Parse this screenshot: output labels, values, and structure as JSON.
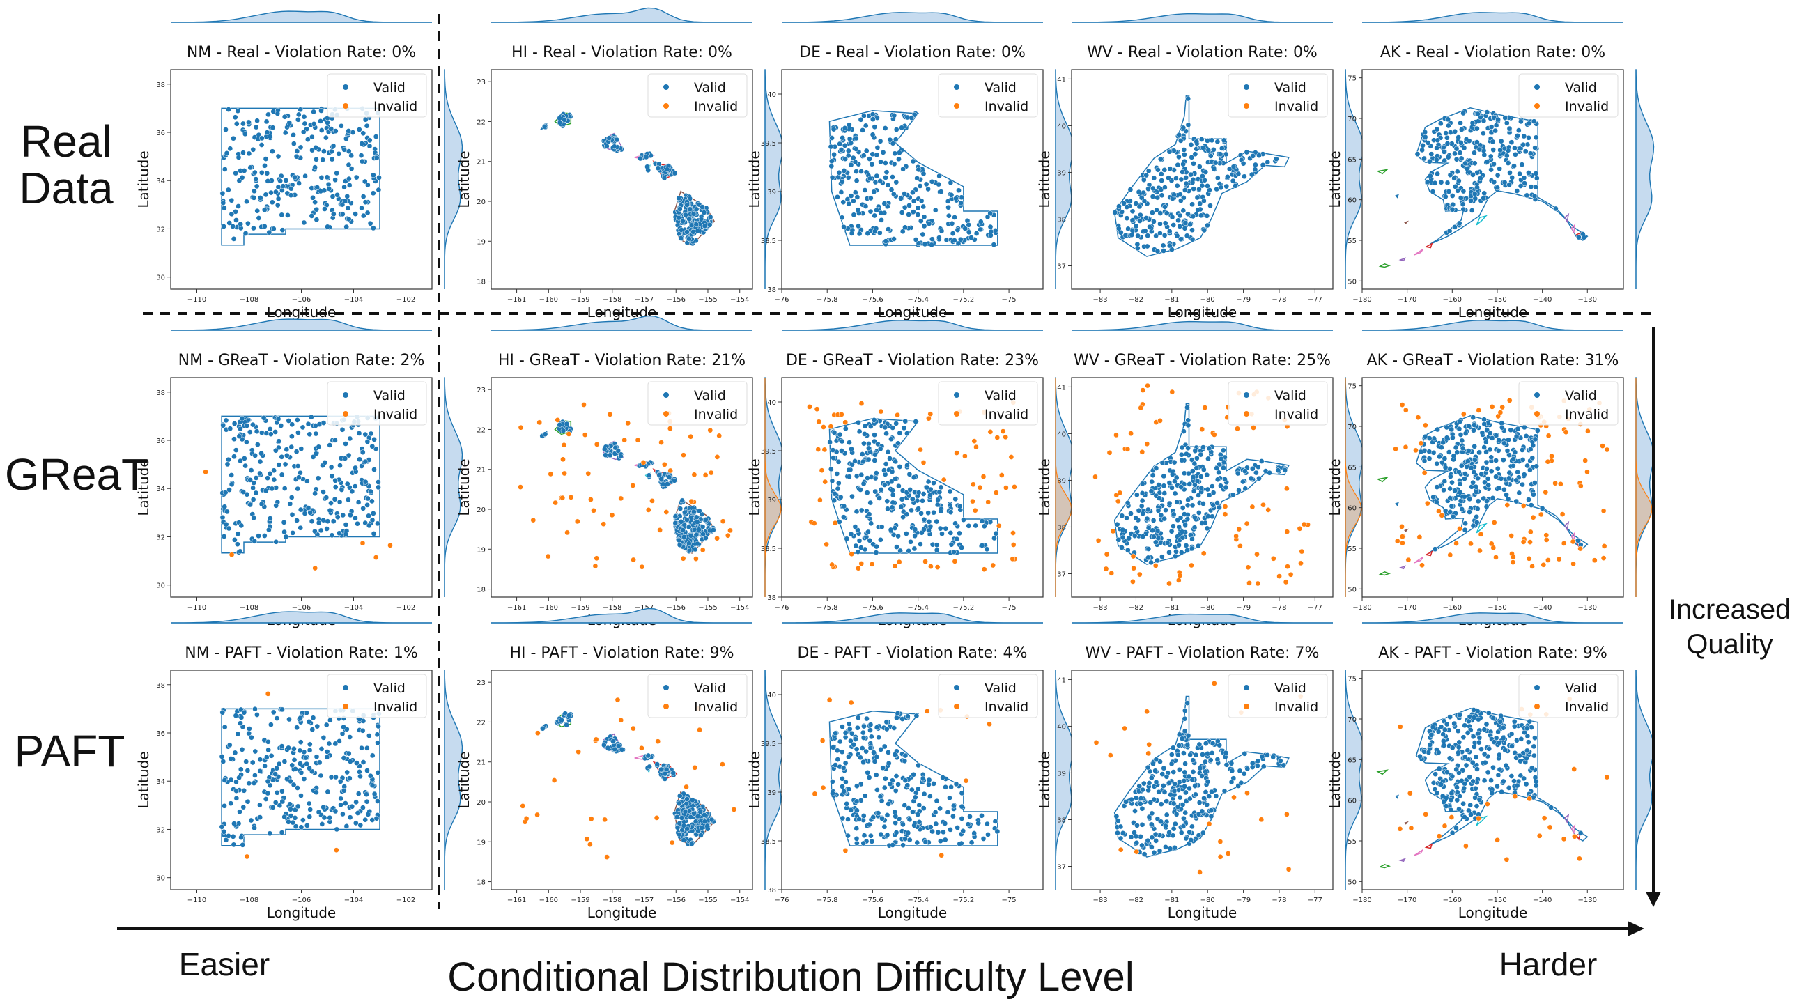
{
  "figure": {
    "row_labels": [
      "Real\nData",
      "GReaT",
      "PAFT"
    ],
    "easier": "Easier",
    "harder": "Harder",
    "difficulty_axis": "Conditional Distribution Difficulty Level",
    "quality_axis": "Increased\nQuality",
    "legend": {
      "valid": "Valid",
      "invalid": "Invalid"
    },
    "xlabel": "Longitude",
    "ylabel": "Latitude",
    "colors": {
      "valid": "#1f77b4",
      "invalid": "#ff7f0e",
      "density": "#c6dbef",
      "border": "#1f77b4"
    }
  },
  "chart_data": [
    {
      "type": "scatter",
      "state": "NM",
      "method": "Real",
      "title": "NM - Real - Violation Rate: 0%",
      "violation_rate": 0,
      "xlim": [
        -111,
        -101
      ],
      "ylim": [
        29.5,
        38.6
      ],
      "xticks": [
        -110,
        -108,
        -106,
        -104,
        -102
      ],
      "yticks": [
        30,
        32,
        34,
        36,
        38
      ]
    },
    {
      "type": "scatter",
      "state": "HI",
      "method": "Real",
      "title": "HI - Real - Violation Rate: 0%",
      "violation_rate": 0,
      "xlim": [
        -161.8,
        -153.6
      ],
      "ylim": [
        17.8,
        23.3
      ],
      "xticks": [
        -161,
        -160,
        -159,
        -158,
        -157,
        -156,
        -155,
        -154
      ],
      "yticks": [
        18,
        19,
        20,
        21,
        22,
        23
      ]
    },
    {
      "type": "scatter",
      "state": "DE",
      "method": "Real",
      "title": "DE - Real - Violation Rate: 0%",
      "violation_rate": 0,
      "xlim": [
        -76.0,
        -74.85
      ],
      "ylim": [
        38.0,
        40.25
      ],
      "xticks": [
        -76.0,
        -75.8,
        -75.6,
        -75.4,
        -75.2,
        -75.0
      ],
      "yticks": [
        38.0,
        38.5,
        39.0,
        39.5,
        40.0
      ]
    },
    {
      "type": "scatter",
      "state": "WV",
      "method": "Real",
      "title": "WV - Real - Violation Rate: 0%",
      "violation_rate": 0,
      "xlim": [
        -83.8,
        -76.5
      ],
      "ylim": [
        36.5,
        41.2
      ],
      "xticks": [
        -83,
        -82,
        -81,
        -80,
        -79,
        -78,
        -77
      ],
      "yticks": [
        37,
        38,
        39,
        40,
        41
      ]
    },
    {
      "type": "scatter",
      "state": "AK",
      "method": "Real",
      "title": "AK - Real - Violation Rate: 0%",
      "violation_rate": 0,
      "xlim": [
        -180,
        -122
      ],
      "ylim": [
        49,
        76
      ],
      "xticks": [
        -180,
        -170,
        -160,
        -150,
        -140,
        -130
      ],
      "yticks": [
        50,
        55,
        60,
        65,
        70,
        75
      ]
    },
    {
      "type": "scatter",
      "state": "NM",
      "method": "GReaT",
      "title": "NM - GReaT - Violation Rate: 2%",
      "violation_rate": 2,
      "xlim": [
        -111,
        -101
      ],
      "ylim": [
        29.5,
        38.6
      ],
      "xticks": [
        -110,
        -108,
        -106,
        -104,
        -102
      ],
      "yticks": [
        30,
        32,
        34,
        36,
        38
      ]
    },
    {
      "type": "scatter",
      "state": "HI",
      "method": "GReaT",
      "title": "HI - GReaT - Violation Rate: 21%",
      "violation_rate": 21,
      "xlim": [
        -161.8,
        -153.6
      ],
      "ylim": [
        17.8,
        23.3
      ],
      "xticks": [
        -161,
        -160,
        -159,
        -158,
        -157,
        -156,
        -155,
        -154
      ],
      "yticks": [
        18,
        19,
        20,
        21,
        22,
        23
      ]
    },
    {
      "type": "scatter",
      "state": "DE",
      "method": "GReaT",
      "title": "DE - GReaT - Violation Rate: 23%",
      "violation_rate": 23,
      "xlim": [
        -76.0,
        -74.85
      ],
      "ylim": [
        38.0,
        40.25
      ],
      "xticks": [
        -76.0,
        -75.8,
        -75.6,
        -75.4,
        -75.2,
        -75.0
      ],
      "yticks": [
        38.0,
        38.5,
        39.0,
        39.5,
        40.0
      ]
    },
    {
      "type": "scatter",
      "state": "WV",
      "method": "GReaT",
      "title": "WV - GReaT - Violation Rate: 25%",
      "violation_rate": 25,
      "xlim": [
        -83.8,
        -76.5
      ],
      "ylim": [
        36.5,
        41.2
      ],
      "xticks": [
        -83,
        -82,
        -81,
        -80,
        -79,
        -78,
        -77
      ],
      "yticks": [
        37,
        38,
        39,
        40,
        41
      ]
    },
    {
      "type": "scatter",
      "state": "AK",
      "method": "GReaT",
      "title": "AK - GReaT - Violation Rate: 31%",
      "violation_rate": 31,
      "xlim": [
        -180,
        -122
      ],
      "ylim": [
        49,
        76
      ],
      "xticks": [
        -180,
        -170,
        -160,
        -150,
        -140,
        -130
      ],
      "yticks": [
        50,
        55,
        60,
        65,
        70,
        75
      ]
    },
    {
      "type": "scatter",
      "state": "NM",
      "method": "PAFT",
      "title": "NM - PAFT - Violation Rate: 1%",
      "violation_rate": 1,
      "xlim": [
        -111,
        -101
      ],
      "ylim": [
        29.5,
        38.6
      ],
      "xticks": [
        -110,
        -108,
        -106,
        -104,
        -102
      ],
      "yticks": [
        30,
        32,
        34,
        36,
        38
      ]
    },
    {
      "type": "scatter",
      "state": "HI",
      "method": "PAFT",
      "title": "HI - PAFT - Violation Rate: 9%",
      "violation_rate": 9,
      "xlim": [
        -161.8,
        -153.6
      ],
      "ylim": [
        17.8,
        23.3
      ],
      "xticks": [
        -161,
        -160,
        -159,
        -158,
        -157,
        -156,
        -155,
        -154
      ],
      "yticks": [
        18,
        19,
        20,
        21,
        22,
        23
      ]
    },
    {
      "type": "scatter",
      "state": "DE",
      "method": "PAFT",
      "title": "DE - PAFT - Violation Rate: 4%",
      "violation_rate": 4,
      "xlim": [
        -76.0,
        -74.85
      ],
      "ylim": [
        38.0,
        40.25
      ],
      "xticks": [
        -76.0,
        -75.8,
        -75.6,
        -75.4,
        -75.2,
        -75.0
      ],
      "yticks": [
        38.0,
        38.5,
        39.0,
        39.5,
        40.0
      ]
    },
    {
      "type": "scatter",
      "state": "WV",
      "method": "PAFT",
      "title": "WV - PAFT - Violation Rate: 7%",
      "violation_rate": 7,
      "xlim": [
        -83.8,
        -76.5
      ],
      "ylim": [
        36.5,
        41.2
      ],
      "xticks": [
        -83,
        -82,
        -81,
        -80,
        -79,
        -78,
        -77
      ],
      "yticks": [
        37,
        38,
        39,
        40,
        41
      ]
    },
    {
      "type": "scatter",
      "state": "AK",
      "method": "PAFT",
      "title": "AK - PAFT - Violation Rate: 9%",
      "violation_rate": 9,
      "xlim": [
        -180,
        -122
      ],
      "ylim": [
        49,
        76
      ],
      "xticks": [
        -180,
        -170,
        -160,
        -150,
        -140,
        -130
      ],
      "yticks": [
        50,
        55,
        60,
        65,
        70,
        75
      ]
    }
  ],
  "shapes": {
    "NM": [
      [
        [
          -109.05,
          37.0
        ],
        [
          -103.0,
          37.0
        ],
        [
          -103.0,
          32.0
        ],
        [
          -106.6,
          32.0
        ],
        [
          -106.6,
          31.78
        ],
        [
          -108.2,
          31.78
        ],
        [
          -108.2,
          31.33
        ],
        [
          -109.05,
          31.33
        ]
      ]
    ],
    "HI": [
      [
        [
          -160.25,
          21.8
        ],
        [
          -160.05,
          21.95
        ],
        [
          -160.1,
          21.85
        ],
        [
          -160.25,
          21.8
        ]
      ],
      [
        [
          -159.8,
          22.0
        ],
        [
          -159.55,
          22.22
        ],
        [
          -159.3,
          22.2
        ],
        [
          -159.3,
          21.95
        ],
        [
          -159.6,
          21.88
        ],
        [
          -159.8,
          22.0
        ]
      ],
      [
        [
          -158.28,
          21.55
        ],
        [
          -157.95,
          21.7
        ],
        [
          -157.65,
          21.3
        ],
        [
          -157.9,
          21.25
        ],
        [
          -158.25,
          21.35
        ],
        [
          -158.28,
          21.55
        ]
      ],
      [
        [
          -157.3,
          21.1
        ],
        [
          -156.85,
          21.2
        ],
        [
          -156.7,
          21.15
        ],
        [
          -156.95,
          21.05
        ],
        [
          -157.3,
          21.1
        ]
      ],
      [
        [
          -156.7,
          21.0
        ],
        [
          -156.45,
          20.92
        ],
        [
          -156.2,
          20.9
        ],
        [
          -155.98,
          20.7
        ],
        [
          -156.4,
          20.55
        ],
        [
          -156.55,
          20.8
        ],
        [
          -156.7,
          21.0
        ]
      ],
      [
        [
          -156.95,
          20.85
        ],
        [
          -156.82,
          20.9
        ],
        [
          -156.85,
          20.75
        ],
        [
          -156.95,
          20.85
        ]
      ],
      [
        [
          -155.85,
          20.25
        ],
        [
          -155.05,
          19.85
        ],
        [
          -154.8,
          19.5
        ],
        [
          -155.5,
          18.9
        ],
        [
          -155.9,
          19.05
        ],
        [
          -156.05,
          19.75
        ],
        [
          -155.85,
          20.25
        ]
      ]
    ],
    "DE": [
      [
        [
          -75.79,
          39.72
        ],
        [
          -75.6,
          39.83
        ],
        [
          -75.4,
          39.8
        ],
        [
          -75.5,
          39.5
        ],
        [
          -75.4,
          39.3
        ],
        [
          -75.2,
          39.05
        ],
        [
          -75.2,
          38.8
        ],
        [
          -75.05,
          38.8
        ],
        [
          -75.05,
          38.45
        ],
        [
          -75.7,
          38.45
        ],
        [
          -75.78,
          39.0
        ],
        [
          -75.79,
          39.72
        ]
      ]
    ],
    "WV": [
      [
        [
          -80.52,
          40.64
        ],
        [
          -80.52,
          39.72
        ],
        [
          -79.48,
          39.72
        ],
        [
          -79.48,
          39.2
        ],
        [
          -78.9,
          39.45
        ],
        [
          -78.35,
          39.4
        ],
        [
          -77.73,
          39.32
        ],
        [
          -77.85,
          39.12
        ],
        [
          -78.4,
          39.15
        ],
        [
          -78.9,
          38.8
        ],
        [
          -79.6,
          38.55
        ],
        [
          -79.9,
          38.0
        ],
        [
          -80.2,
          37.6
        ],
        [
          -80.9,
          37.35
        ],
        [
          -81.3,
          37.28
        ],
        [
          -81.7,
          37.2
        ],
        [
          -82.5,
          37.6
        ],
        [
          -82.6,
          38.15
        ],
        [
          -82.2,
          38.6
        ],
        [
          -81.9,
          38.9
        ],
        [
          -81.5,
          39.3
        ],
        [
          -80.9,
          39.6
        ],
        [
          -80.65,
          40.2
        ],
        [
          -80.6,
          40.64
        ]
      ]
    ],
    "AK": [
      [
        [
          -168,
          65.5
        ],
        [
          -166,
          68.9
        ],
        [
          -163,
          69.8
        ],
        [
          -156,
          71.3
        ],
        [
          -150,
          70.5
        ],
        [
          -141,
          69.6
        ],
        [
          -141,
          60.3
        ],
        [
          -137,
          59
        ],
        [
          -133,
          56.6
        ],
        [
          -130,
          55.5
        ],
        [
          -131,
          55
        ],
        [
          -132.5,
          55.5
        ],
        [
          -134.6,
          57.5
        ],
        [
          -136.5,
          58.5
        ],
        [
          -140,
          59.8
        ],
        [
          -146,
          60.7
        ],
        [
          -150,
          61.1
        ],
        [
          -152,
          60.2
        ],
        [
          -154,
          58
        ],
        [
          -158,
          56.5
        ],
        [
          -161,
          55.5
        ],
        [
          -165,
          54.5
        ],
        [
          -163,
          55.2
        ],
        [
          -158,
          57.5
        ],
        [
          -157.5,
          58.7
        ],
        [
          -161.5,
          58.6
        ],
        [
          -162,
          60
        ],
        [
          -165,
          61
        ],
        [
          -166,
          62.5
        ],
        [
          -164.5,
          63.5
        ],
        [
          -161,
          64.5
        ],
        [
          -166,
          64.6
        ],
        [
          -168,
          65.5
        ]
      ]
    ],
    "AK_islands": [
      [
        [
          -176,
          51.8
        ],
        [
          -175,
          52.1
        ],
        [
          -174,
          51.9
        ],
        [
          -175,
          51.7
        ],
        [
          -176,
          51.8
        ]
      ],
      [
        [
          -171.5,
          52.6
        ],
        [
          -170.5,
          52.8
        ],
        [
          -170.8,
          52.5
        ],
        [
          -171.5,
          52.6
        ]
      ],
      [
        [
          -168.5,
          53.2
        ],
        [
          -166.5,
          53.9
        ],
        [
          -167,
          53.5
        ],
        [
          -168.5,
          53.2
        ]
      ],
      [
        [
          -165.8,
          54.2
        ],
        [
          -164.5,
          54.6
        ],
        [
          -164.8,
          54.1
        ],
        [
          -165.8,
          54.2
        ]
      ],
      [
        [
          -152.5,
          58
        ],
        [
          -153.5,
          57.4
        ],
        [
          -154.6,
          56.9
        ],
        [
          -153.9,
          57.8
        ],
        [
          -152.5,
          58
        ]
      ],
      [
        [
          -170.5,
          57.2
        ],
        [
          -170.0,
          57.3
        ],
        [
          -170.3,
          57.1
        ],
        [
          -170.5,
          57.2
        ]
      ],
      [
        [
          -172.5,
          60.5
        ],
        [
          -172.0,
          60.6
        ],
        [
          -172.2,
          60.3
        ],
        [
          -172.5,
          60.5
        ]
      ],
      [
        [
          -176.5,
          63.5
        ],
        [
          -174.5,
          63.7
        ],
        [
          -175.5,
          63.2
        ],
        [
          -176.5,
          63.5
        ]
      ],
      [
        [
          -135,
          57.8
        ],
        [
          -134.2,
          58.2
        ],
        [
          -134.5,
          57.3
        ],
        [
          -135,
          57.8
        ]
      ],
      [
        [
          -133.5,
          56.5
        ],
        [
          -132.8,
          56.9
        ],
        [
          -133.0,
          56.0
        ],
        [
          -133.5,
          56.5
        ]
      ],
      [
        [
          -132.4,
          55.7
        ],
        [
          -131.6,
          55.9
        ],
        [
          -131.9,
          55.2
        ],
        [
          -132.4,
          55.7
        ]
      ]
    ]
  }
}
